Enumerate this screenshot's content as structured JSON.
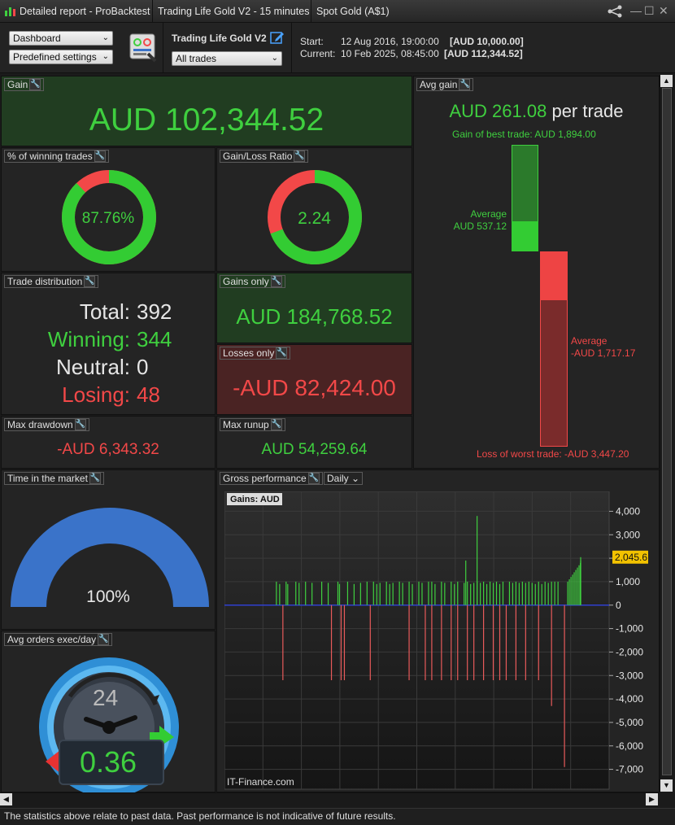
{
  "titlebar": {
    "tabs": [
      "Detailed report - ProBacktest",
      "Trading Life Gold V2 - 15 minutes",
      "Spot Gold (A$1)"
    ]
  },
  "toolbar": {
    "view_select": "Dashboard",
    "settings_select": "Predefined settings",
    "strategy_name": "Trading Life Gold V2",
    "trades_select": "All trades",
    "start_label": "Start:",
    "start_date": "12 Aug 2016, 19:00:00",
    "start_capital": "[AUD 10,000.00]",
    "current_label": "Current:",
    "current_date": "10 Feb 2025, 08:45:00",
    "current_capital": "[AUD 112,344.52]"
  },
  "gain": {
    "label": "Gain",
    "value": "AUD 102,344.52"
  },
  "winning_pct": {
    "label": "% of winning trades",
    "value": "87.76%",
    "fraction": 0.8776
  },
  "gain_loss_ratio": {
    "label": "Gain/Loss Ratio",
    "value": "2.24",
    "gain_fraction": 0.692
  },
  "trade_distribution": {
    "label": "Trade distribution",
    "total_label": "Total:",
    "total": "392",
    "winning_label": "Winning:",
    "winning": "344",
    "neutral_label": "Neutral:",
    "neutral": "0",
    "losing_label": "Losing:",
    "losing": "48"
  },
  "gains_only": {
    "label": "Gains only",
    "value": "AUD 184,768.52"
  },
  "losses_only": {
    "label": "Losses only",
    "value": "-AUD 82,424.00"
  },
  "max_drawdown": {
    "label": "Max drawdown",
    "value": "-AUD 6,343.32"
  },
  "max_runup": {
    "label": "Max runup",
    "value": "AUD 54,259.64"
  },
  "avg_gain": {
    "label": "Avg gain",
    "value": "AUD 261.08",
    "per_trade": "per trade",
    "best_trade": "Gain of best trade: AUD 1,894.00",
    "avg_win_label": "Average",
    "avg_win_value": "AUD 537.12",
    "avg_loss_label": "Average",
    "avg_loss_value": "-AUD 1,717.17",
    "worst_trade": "Loss of worst trade: -AUD 3,447.20",
    "best_value": 1894.0,
    "avg_win": 537.12,
    "avg_loss": -1717.17,
    "worst_value": -3447.2
  },
  "time_in_market": {
    "label": "Time in the market",
    "value": "100%",
    "fraction": 1.0
  },
  "avg_orders": {
    "label": "Avg orders exec/day",
    "value": "0.36",
    "clock_text": "24"
  },
  "gross_performance": {
    "label": "Gross performance",
    "period_select": "Daily",
    "chart_title": "Gains: AUD",
    "watermark": "IT-Finance.com",
    "current_value_badge": "2,045.6"
  },
  "footer": {
    "disclaimer": "The statistics above relate to past data. Past performance is not indicative of future results."
  },
  "colors": {
    "green": "#3fcf3f",
    "red": "#f24848",
    "panel": "#242424",
    "gain_bg": "#213d21",
    "loss_bg": "#4a2323",
    "blue_gauge": "#3a73c9"
  },
  "chart_data": {
    "type": "bar",
    "title": "Gains: AUD",
    "xlabel": "",
    "ylabel": "",
    "ylim": [
      -7500,
      4500
    ],
    "yticks": [
      "4,000",
      "3,000",
      "2,000",
      "1,000",
      "0",
      "-1,000",
      "-2,000",
      "-3,000",
      "-4,000",
      "-5,000",
      "-6,000",
      "-7,000"
    ],
    "ytick_values": [
      4000,
      3000,
      2000,
      1000,
      0,
      -1000,
      -2000,
      -3000,
      -4000,
      -5000,
      -6000,
      -7000
    ],
    "last_value": 2045.6,
    "gains": [
      [
        0.06,
        1000
      ],
      [
        0.07,
        900
      ],
      [
        0.09,
        1000
      ],
      [
        0.095,
        900
      ],
      [
        0.12,
        1000
      ],
      [
        0.13,
        950
      ],
      [
        0.15,
        1000
      ],
      [
        0.17,
        950
      ],
      [
        0.2,
        1000
      ],
      [
        0.22,
        950
      ],
      [
        0.25,
        1000
      ],
      [
        0.255,
        900
      ],
      [
        0.28,
        1000
      ],
      [
        0.3,
        900
      ],
      [
        0.32,
        950
      ],
      [
        0.34,
        1000
      ],
      [
        0.36,
        1000
      ],
      [
        0.37,
        900
      ],
      [
        0.38,
        950
      ],
      [
        0.4,
        1000
      ],
      [
        0.41,
        900
      ],
      [
        0.42,
        950
      ],
      [
        0.44,
        1000
      ],
      [
        0.45,
        950
      ],
      [
        0.47,
        1000
      ],
      [
        0.48,
        900
      ],
      [
        0.5,
        1000
      ],
      [
        0.51,
        950
      ],
      [
        0.53,
        1000
      ],
      [
        0.54,
        1000
      ],
      [
        0.55,
        900
      ],
      [
        0.57,
        1000
      ],
      [
        0.58,
        950
      ],
      [
        0.6,
        1000
      ],
      [
        0.61,
        900
      ],
      [
        0.62,
        1000
      ],
      [
        0.64,
        950
      ],
      [
        0.65,
        1000
      ],
      [
        0.66,
        900
      ],
      [
        0.67,
        950
      ],
      [
        0.68,
        1000
      ],
      [
        0.69,
        950
      ],
      [
        0.7,
        1000
      ],
      [
        0.71,
        900
      ],
      [
        0.72,
        1000
      ],
      [
        0.73,
        950
      ],
      [
        0.74,
        1000
      ],
      [
        0.75,
        900
      ],
      [
        0.76,
        1000
      ],
      [
        0.78,
        1000
      ],
      [
        0.79,
        950
      ],
      [
        0.8,
        1000
      ],
      [
        0.81,
        950
      ],
      [
        0.82,
        1000
      ],
      [
        0.83,
        950
      ],
      [
        0.84,
        1000
      ],
      [
        0.85,
        950
      ],
      [
        0.86,
        900
      ],
      [
        0.87,
        1000
      ],
      [
        0.88,
        900
      ],
      [
        0.89,
        1000
      ],
      [
        0.9,
        950
      ],
      [
        0.91,
        1000
      ],
      [
        0.92,
        1000
      ],
      [
        0.93,
        1000
      ],
      [
        0.645,
        1900
      ],
      [
        0.68,
        3800
      ],
      [
        0.96,
        1000
      ],
      [
        0.965,
        1100
      ],
      [
        0.97,
        1200
      ],
      [
        0.975,
        1300
      ],
      [
        0.98,
        1400
      ],
      [
        0.985,
        1500
      ],
      [
        0.99,
        1600
      ],
      [
        0.995,
        1700
      ],
      [
        0.999,
        1800
      ],
      [
        1.0,
        1900
      ],
      [
        1.0,
        2045
      ]
    ],
    "losses": [
      [
        0.08,
        -3200
      ],
      [
        0.23,
        -3200
      ],
      [
        0.26,
        -3200
      ],
      [
        0.27,
        -3200
      ],
      [
        0.35,
        -3200
      ],
      [
        0.47,
        -3200
      ],
      [
        0.52,
        -3200
      ],
      [
        0.54,
        -3200
      ],
      [
        0.57,
        -3200
      ],
      [
        0.6,
        -3200
      ],
      [
        0.62,
        -3200
      ],
      [
        0.65,
        -3200
      ],
      [
        0.67,
        -3200
      ],
      [
        0.7,
        -3200
      ],
      [
        0.73,
        -3200
      ],
      [
        0.75,
        -3200
      ],
      [
        0.77,
        -3200
      ],
      [
        0.8,
        -3200
      ],
      [
        0.83,
        -3200
      ],
      [
        0.87,
        -3200
      ],
      [
        0.91,
        -4300
      ],
      [
        0.95,
        -6900
      ]
    ]
  }
}
